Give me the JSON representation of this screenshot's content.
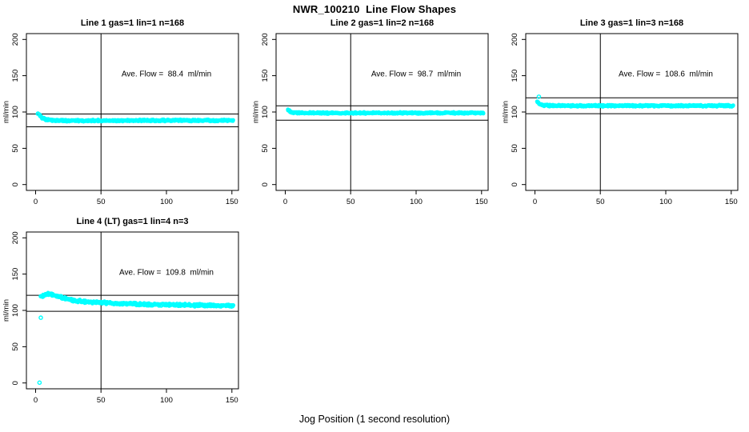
{
  "figure": {
    "title": "NWR_100210  Line Flow Shapes",
    "xlabel": "Jog Position (1 second resolution)",
    "ylabel": "ml/min",
    "point_color": "#00FFFF",
    "axis_color": "#000000",
    "background_color": "#FFFFFF",
    "x_ticks": [
      0,
      50,
      100,
      150
    ],
    "y_ticks": [
      0,
      50,
      100,
      150,
      200
    ]
  },
  "chart_data": [
    {
      "type": "scatter",
      "title": "Line 1 gas=1 lin=1 n=168",
      "annotation": "Ave. Flow =  88.4  ml/min",
      "ave_flow": 88.4,
      "ylabel": "ml/min",
      "xlim": [
        -7,
        155
      ],
      "ylim": [
        -8,
        208
      ],
      "ref_line_x": 50,
      "ref_lines_y": [
        97.2,
        79.6
      ],
      "series_profile": [
        [
          2,
          97.5
        ],
        [
          3,
          96
        ],
        [
          4,
          93.5
        ],
        [
          5,
          92
        ],
        [
          7,
          90
        ],
        [
          10,
          89
        ],
        [
          15,
          88.4
        ],
        [
          30,
          88.2
        ],
        [
          90,
          88.3
        ],
        [
          151,
          88.4
        ]
      ],
      "x_start": 2,
      "x_end": 151,
      "band": 1.5,
      "passes": 3,
      "outliers": []
    },
    {
      "type": "scatter",
      "title": "Line 2 gas=1 lin=2 n=168",
      "annotation": "Ave. Flow =  98.7  ml/min",
      "ave_flow": 98.7,
      "ylabel": "ml/min",
      "xlim": [
        -7,
        155
      ],
      "ylim": [
        -8,
        208
      ],
      "ref_line_x": 50,
      "ref_lines_y": [
        108.6,
        88.8
      ],
      "series_profile": [
        [
          2,
          103
        ],
        [
          3,
          101.5
        ],
        [
          4,
          100.3
        ],
        [
          6,
          99.3
        ],
        [
          10,
          98.8
        ],
        [
          30,
          98.6
        ],
        [
          90,
          98.7
        ],
        [
          151,
          98.8
        ]
      ],
      "x_start": 2,
      "x_end": 151,
      "band": 1.3,
      "passes": 3,
      "outliers": []
    },
    {
      "type": "scatter",
      "title": "Line 3 gas=1 lin=3 n=168",
      "annotation": "Ave. Flow =  108.6  ml/min",
      "ave_flow": 108.6,
      "ylabel": "ml/min",
      "xlim": [
        -7,
        155
      ],
      "ylim": [
        -8,
        208
      ],
      "ref_line_x": 50,
      "ref_lines_y": [
        119.5,
        97.7
      ],
      "series_profile": [
        [
          2,
          114
        ],
        [
          3,
          112
        ],
        [
          4,
          110.8
        ],
        [
          6,
          109.5
        ],
        [
          10,
          108.9
        ],
        [
          30,
          108.5
        ],
        [
          90,
          108.6
        ],
        [
          151,
          108.5
        ]
      ],
      "x_start": 2,
      "x_end": 151,
      "band": 1.4,
      "passes": 3,
      "outliers": [
        [
          3,
          121
        ]
      ]
    },
    {
      "type": "scatter",
      "title": "Line 4 (LT) gas=1 lin=4 n=3",
      "annotation": "Ave. Flow =  109.8  ml/min",
      "ave_flow": 109.8,
      "ylabel": "ml/min",
      "xlim": [
        -7,
        155
      ],
      "ylim": [
        -8,
        208
      ],
      "ref_line_x": 50,
      "ref_lines_y": [
        120.8,
        98.8
      ],
      "series_profile": [
        [
          5,
          118.5
        ],
        [
          7,
          121
        ],
        [
          10,
          122.8
        ],
        [
          14,
          121.5
        ],
        [
          20,
          117.5
        ],
        [
          28,
          114
        ],
        [
          40,
          111.5
        ],
        [
          60,
          109.5
        ],
        [
          90,
          108
        ],
        [
          120,
          107.3
        ],
        [
          151,
          106.3
        ]
      ],
      "x_start": 5,
      "x_end": 151,
      "band": 2.3,
      "passes": 3,
      "outliers": [
        [
          3,
          0.5
        ],
        [
          4,
          90
        ],
        [
          4,
          119.5
        ]
      ]
    }
  ]
}
